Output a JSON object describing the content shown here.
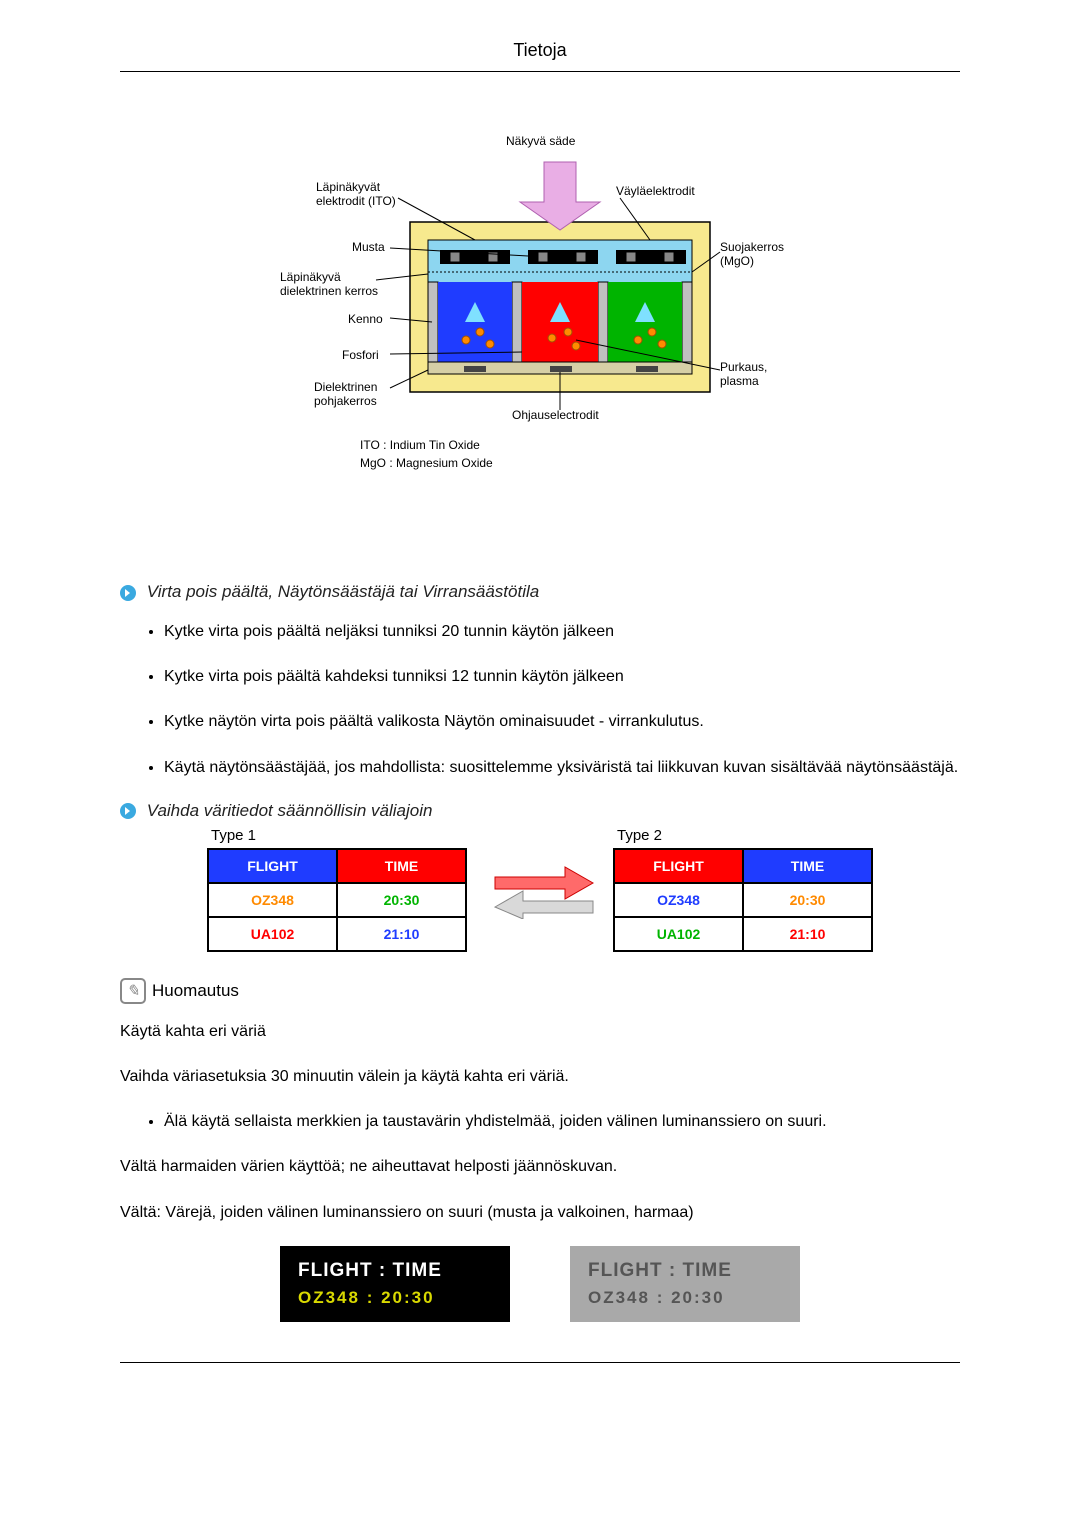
{
  "header": {
    "title": "Tietoja"
  },
  "diagram1": {
    "labels": {
      "top": "Näkyvä säde",
      "topLeft": "Läpinäkyvät\nelektrodit (ITO)",
      "topRight": "Väyläelektrodit",
      "black": "Musta",
      "dielectricTrans": "Läpinäkyvä\ndielektrinen kerros",
      "cell": "Kenno",
      "phosphor": "Fosfori",
      "dielectricBase": "Dielektrinen\npohjakerros",
      "address": "Ohjauselectrodit",
      "protect": "Suojakerros\n(MgO)",
      "discharge": "Purkaus,\nplasma",
      "ito": "ITO : Indium Tin Oxide",
      "mgo": "MgO : Magnesium Oxide"
    },
    "colors": {
      "frame": "#f7e98e",
      "cellBg": "#8dd6f0",
      "red": "#ff0000",
      "green": "#00b400",
      "blue": "#1f3cff",
      "black": "#000",
      "arrow": "#e9aee5",
      "orange": "#ff8a00"
    }
  },
  "section1": {
    "title": "Virta pois päältä, Näytönsäästäjä tai Virransäästötila",
    "bullets": [
      "Kytke virta pois päältä neljäksi tunniksi 20 tunnin käytön jälkeen",
      "Kytke virta pois päältä kahdeksi tunniksi 12 tunnin käytön jälkeen",
      "Kytke näytön virta pois päältä valikosta Näytön ominaisuudet - virrankulutus.",
      "Käytä näytönsäästäjää, jos mahdollista: suosittelemme yksiväristä tai liikkuvan kuvan sisältävää näytönsäästäjä."
    ]
  },
  "section2": {
    "title": "Vaihda väritiedot säännöllisin väliajoin",
    "table1": {
      "typeLabel": "Type 1",
      "header": {
        "c1": "FLIGHT",
        "c2": "TIME",
        "c1bg": "#1f3cff",
        "c1fg": "#ffffff",
        "c2bg": "#ff0000",
        "c2fg": "#ffffff"
      },
      "rows": [
        {
          "c1": "OZ348",
          "c2": "20:30",
          "c1bg": "#ffffff",
          "c1fg": "#ff8a00",
          "c2bg": "#ffffff",
          "c2fg": "#00b400"
        },
        {
          "c1": "UA102",
          "c2": "21:10",
          "c1bg": "#ffffff",
          "c1fg": "#ff0000",
          "c2bg": "#ffffff",
          "c2fg": "#1f3cff"
        }
      ]
    },
    "table2": {
      "typeLabel": "Type 2",
      "header": {
        "c1": "FLIGHT",
        "c2": "TIME",
        "c1bg": "#ff0000",
        "c1fg": "#ffffff",
        "c2bg": "#1f3cff",
        "c2fg": "#ffffff"
      },
      "rows": [
        {
          "c1": "OZ348",
          "c2": "20:30",
          "c1bg": "#ffffff",
          "c1fg": "#1f3cff",
          "c2bg": "#ffffff",
          "c2fg": "#ff8a00"
        },
        {
          "c1": "UA102",
          "c2": "21:10",
          "c1bg": "#ffffff",
          "c1fg": "#00b400",
          "c2bg": "#ffffff",
          "c2fg": "#ff0000"
        }
      ]
    }
  },
  "note": {
    "label": "Huomautus",
    "line1": "Käytä kahta eri väriä",
    "line2": "Vaihda väriasetuksia 30 minuutin välein ja käytä kahta eri väriä.",
    "bullets": [
      "Älä käytä sellaista merkkien ja taustavärin yhdistelmää, joiden välinen luminanssiero on suuri."
    ],
    "line3": "Vältä harmaiden värien käyttöä; ne aiheuttavat helposti jäännöskuvan.",
    "line4": "Vältä: Värejä, joiden välinen luminanssiero on suuri (musta ja valkoinen, harmaa)"
  },
  "avoid": {
    "box1": {
      "bg": "#000000",
      "l1": {
        "text": "FLIGHT  :  TIME",
        "color": "#ffffff"
      },
      "l2": {
        "text": "OZ348    :  20:30",
        "color": "#d9d900"
      }
    },
    "box2": {
      "bg": "#a9a9a9",
      "l1": {
        "text": "FLIGHT  :  TIME",
        "color": "#555555"
      },
      "l2": {
        "text": "OZ348    :  20:30",
        "color": "#555555"
      }
    }
  }
}
